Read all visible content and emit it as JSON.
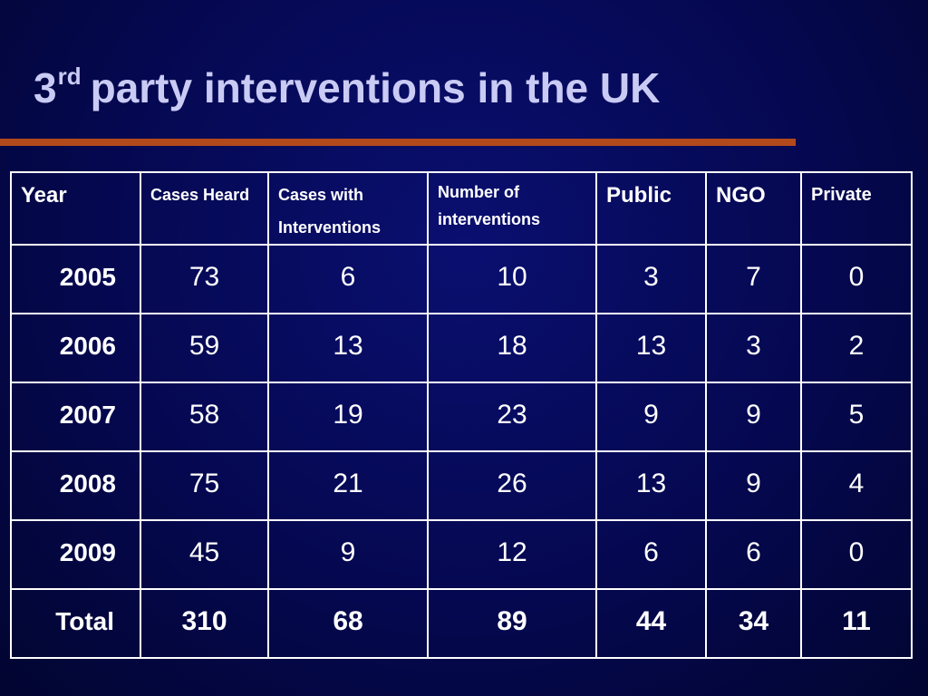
{
  "slide": {
    "title_number": "3",
    "title_superscript": "rd",
    "title_rest": "party interventions in the UK"
  },
  "table": {
    "headers": [
      "Year",
      "Cases Heard",
      "Cases with Interventions",
      "Number of interventions",
      "Public",
      "NGO",
      "Private"
    ],
    "rows": [
      [
        "2005",
        "73",
        "6",
        "10",
        "3",
        "7",
        "0"
      ],
      [
        "2006",
        "59",
        "13",
        "18",
        "13",
        "3",
        "2"
      ],
      [
        "2007",
        "58",
        "19",
        "23",
        "9",
        "9",
        "5"
      ],
      [
        "2008",
        "75",
        "21",
        "26",
        "13",
        "9",
        "4"
      ],
      [
        "2009",
        "45",
        "9",
        "12",
        "6",
        "6",
        "0"
      ]
    ],
    "total": [
      "Total",
      "310",
      "68",
      "89",
      "44",
      "34",
      "11"
    ]
  },
  "colors": {
    "background": "#050850",
    "title": "#c9cbf5",
    "rule": "#b24a1c",
    "table_text": "#ffffff",
    "table_border": "#ffffff"
  }
}
